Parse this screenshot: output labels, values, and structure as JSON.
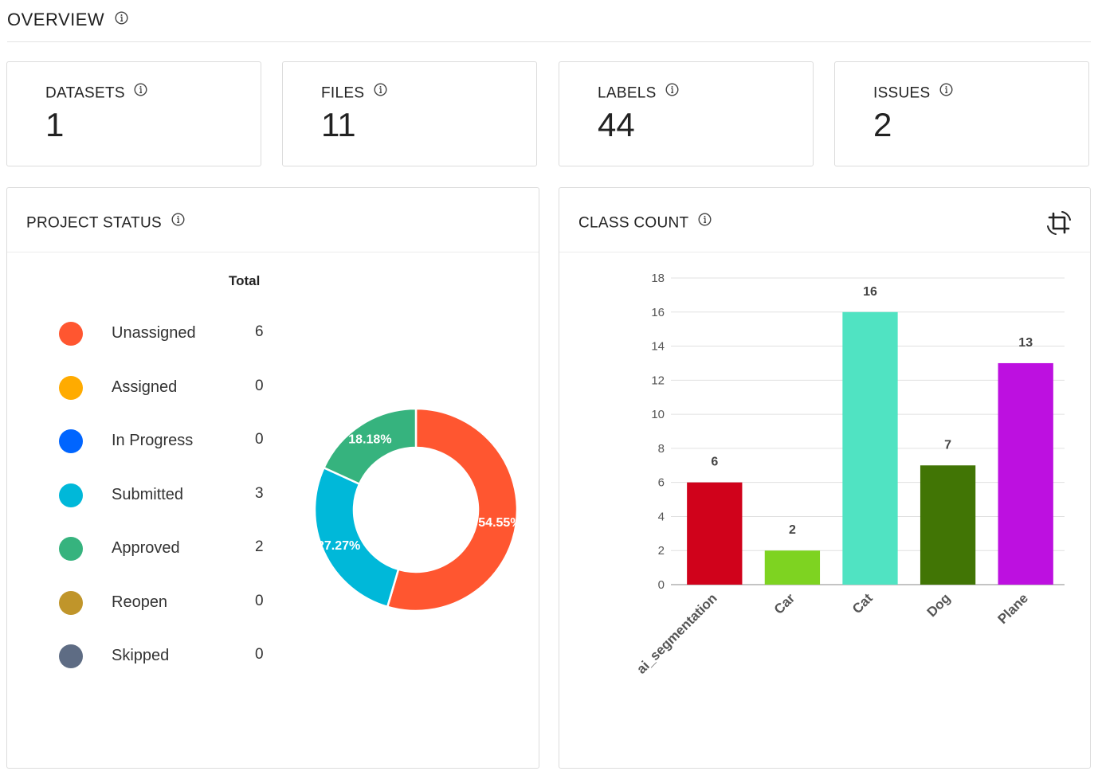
{
  "overview": {
    "title": "OVERVIEW"
  },
  "stats": [
    {
      "label": "DATASETS",
      "value": "1"
    },
    {
      "label": "FILES",
      "value": "11"
    },
    {
      "label": "LABELS",
      "value": "44"
    },
    {
      "label": "ISSUES",
      "value": "2"
    }
  ],
  "project_status": {
    "title": "PROJECT STATUS",
    "total_header": "Total",
    "items": [
      {
        "name": "Unassigned",
        "count": "6",
        "color": "#ff5630"
      },
      {
        "name": "Assigned",
        "count": "0",
        "color": "#ffab00"
      },
      {
        "name": "In Progress",
        "count": "0",
        "color": "#0065ff"
      },
      {
        "name": "Submitted",
        "count": "3",
        "color": "#00b8d9"
      },
      {
        "name": "Approved",
        "count": "2",
        "color": "#36b37e"
      },
      {
        "name": "Reopen",
        "count": "0",
        "color": "#c0952a"
      },
      {
        "name": "Skipped",
        "count": "0",
        "color": "#5e6c84"
      }
    ],
    "donut_labels": [
      "54.55%",
      "27.27%",
      "18.18%"
    ]
  },
  "class_count": {
    "title": "CLASS COUNT"
  },
  "chart_data": {
    "type": "bar",
    "categories": [
      "ai_segmentation",
      "Car",
      "Cat",
      "Dog",
      "Plane"
    ],
    "values": [
      6,
      2,
      16,
      7,
      13
    ],
    "colors": [
      "#d0021b",
      "#7ed321",
      "#50e3c2",
      "#417505",
      "#bd10e0"
    ],
    "ylim": [
      0,
      18
    ],
    "yticks": [
      0,
      2,
      4,
      6,
      8,
      10,
      12,
      14,
      16,
      18
    ],
    "grid": true,
    "legend": "none"
  },
  "icons": {
    "info": "info-circle-icon",
    "crop": "crop-icon"
  }
}
